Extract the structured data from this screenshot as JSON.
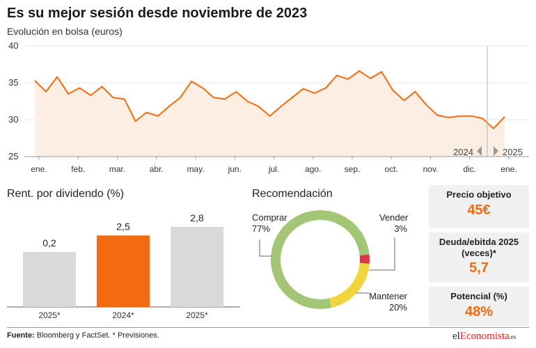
{
  "header": {
    "title": "Es su mejor sesión desde noviembre de 2023",
    "subtitle": "Evolución en bolsa (euros)"
  },
  "colors": {
    "accent": "#f26b0f",
    "area": "#fdeee3",
    "bar_grey": "#d9d9d9",
    "comprar": "#a3c676",
    "mantener": "#f2d43c",
    "vender": "#d9364a"
  },
  "chart_data": [
    {
      "type": "area",
      "title": "Evolución en bolsa (euros)",
      "x_labels": [
        "ene.",
        "feb.",
        "mar.",
        "abr.",
        "may.",
        "jun.",
        "jul.",
        "ago.",
        "sep.",
        "oct.",
        "nov.",
        "dic.",
        "ene."
      ],
      "year_markers": [
        "2024",
        "2025"
      ],
      "ylim": [
        25,
        40
      ],
      "yticks": [
        25,
        30,
        35,
        40
      ],
      "series": [
        {
          "values": [
            35.3,
            33.8,
            35.8,
            33.5,
            34.3,
            33.3,
            34.5,
            33.0,
            32.8,
            29.8,
            31.0,
            30.5,
            31.8,
            33.0,
            35.2,
            34.3,
            33.0,
            32.8,
            33.8,
            32.5,
            31.8,
            30.5,
            31.8,
            33.0,
            34.2,
            33.6,
            34.3,
            36.0,
            35.5,
            36.6,
            35.6,
            36.5,
            34.0,
            32.6,
            33.8,
            32.0,
            30.6,
            30.3,
            30.5,
            30.5,
            30.2,
            28.8,
            30.4
          ]
        }
      ]
    },
    {
      "type": "bar",
      "title": "Rent. por dividendo (%)",
      "categories": [
        "2025*",
        "2024*",
        "2025*"
      ],
      "values": [
        0.2,
        2.5,
        2.8
      ],
      "value_labels": [
        "0,2",
        "2,5",
        "2,8"
      ],
      "highlight_index": 1
    },
    {
      "type": "pie",
      "title": "Recomendación",
      "slices": [
        {
          "name": "Comprar",
          "value": 77,
          "label": "77%"
        },
        {
          "name": "Mantener",
          "value": 20,
          "label": "20%"
        },
        {
          "name": "Vender",
          "value": 3,
          "label": "3%"
        }
      ]
    }
  ],
  "cards": [
    {
      "label": "Precio objetivo",
      "value": "45€"
    },
    {
      "label": "Deuda/ebitda 2025 (veces)*",
      "value": "5,7"
    },
    {
      "label": "Potencial (%)",
      "value": "48%"
    }
  ],
  "footer": {
    "source_label": "Fuente:",
    "source_text": " Bloomberg y FactSet. * Previsiones.",
    "logo_a": "el",
    "logo_b": "Economista",
    "logo_c": ".es"
  }
}
